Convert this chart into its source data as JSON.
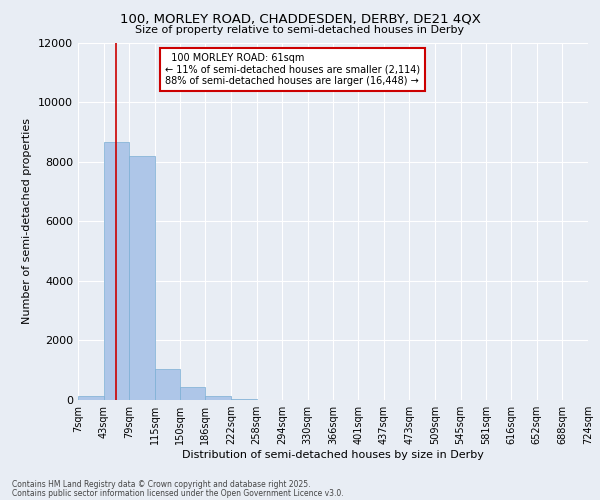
{
  "title_line1": "100, MORLEY ROAD, CHADDESDEN, DERBY, DE21 4QX",
  "title_line2": "Size of property relative to semi-detached houses in Derby",
  "xlabel": "Distribution of semi-detached houses by size in Derby",
  "ylabel": "Number of semi-detached properties",
  "property_size": 61,
  "property_label": "100 MORLEY ROAD: 61sqm",
  "pct_smaller": 11,
  "pct_larger": 88,
  "n_smaller": 2114,
  "n_larger": 16448,
  "bin_edges": [
    7,
    43,
    79,
    115,
    150,
    186,
    222,
    258,
    294,
    330,
    366,
    401,
    437,
    473,
    509,
    545,
    581,
    616,
    652,
    688,
    724
  ],
  "bin_labels": [
    "7sqm",
    "43sqm",
    "79sqm",
    "115sqm",
    "150sqm",
    "186sqm",
    "222sqm",
    "258sqm",
    "294sqm",
    "330sqm",
    "366sqm",
    "401sqm",
    "437sqm",
    "473sqm",
    "509sqm",
    "545sqm",
    "581sqm",
    "616sqm",
    "652sqm",
    "688sqm",
    "724sqm"
  ],
  "bar_values": [
    150,
    8650,
    8200,
    1050,
    430,
    120,
    50,
    15,
    8,
    4,
    2,
    1,
    1,
    0,
    0,
    0,
    0,
    0,
    0,
    0
  ],
  "bar_color": "#aec6e8",
  "bar_edge_color": "#7bafd4",
  "background_color": "#e8edf4",
  "grid_color": "#ffffff",
  "annotation_box_facecolor": "#ffffff",
  "annotation_box_edgecolor": "#cc0000",
  "red_line_color": "#cc0000",
  "ylim": [
    0,
    12000
  ],
  "yticks": [
    0,
    2000,
    4000,
    6000,
    8000,
    10000,
    12000
  ],
  "footer_line1": "Contains HM Land Registry data © Crown copyright and database right 2025.",
  "footer_line2": "Contains public sector information licensed under the Open Government Licence v3.0."
}
